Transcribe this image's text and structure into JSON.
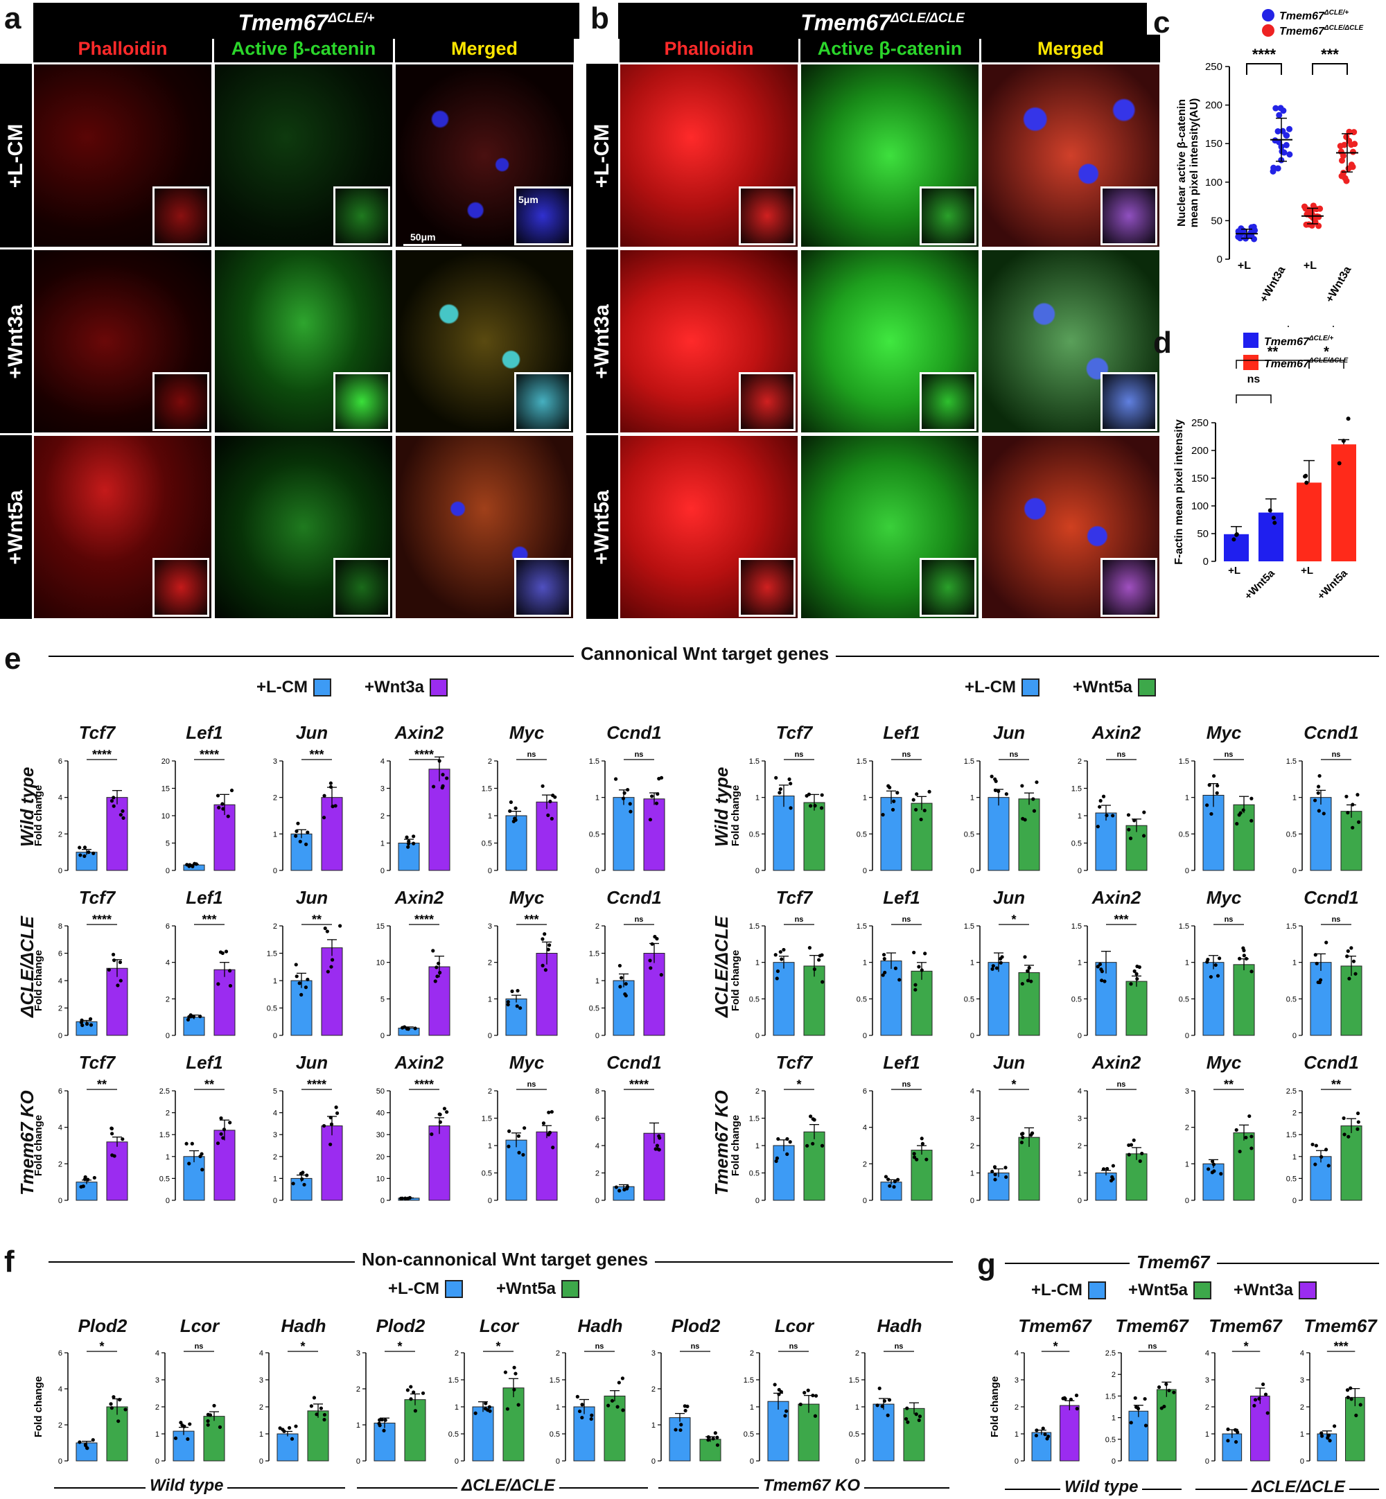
{
  "panel_labels": {
    "a": "a",
    "b": "b",
    "c": "c",
    "d": "d",
    "e": "e",
    "f": "f",
    "g": "g"
  },
  "micro_a": {
    "title_base": "Tmem67",
    "title_sup": "ΔCLE/+"
  },
  "micro_b": {
    "title_base": "Tmem67",
    "title_sup": "ΔCLE/ΔCLE"
  },
  "micro_columns": [
    "Phalloidin",
    "Active β-catenin",
    "Merged"
  ],
  "micro_column_colors": [
    "#ff2a2a",
    "#2bd62b",
    "#ffe600"
  ],
  "micro_rows": [
    "+L-CM",
    "+Wnt3a",
    "+Wnt5a"
  ],
  "scale_bars": {
    "inset": "5μm",
    "main": "50μm"
  },
  "chart_data": [
    {
      "id": "c",
      "type": "scatter",
      "legend": [
        {
          "name": "Tmem67",
          "sup": "ΔCLE/+",
          "color": "#2323e6"
        },
        {
          "name": "Tmem67",
          "sup": "ΔCLE/ΔCLE",
          "color": "#ee2222"
        }
      ],
      "ylabel": "Nuclear active β-catenin mean pixel intensity(AU)",
      "ylim": [
        0,
        250
      ],
      "yticks": [
        0,
        50,
        100,
        150,
        200,
        250
      ],
      "categories": [
        "+L",
        "+Wnt3a",
        "+L",
        "+Wnt3a"
      ],
      "means": [
        33,
        155,
        56,
        138
      ],
      "sig": [
        "****",
        "***"
      ]
    },
    {
      "id": "d",
      "type": "bar",
      "legend": [
        {
          "name": "Tmem67",
          "sup": "ΔCLE/+",
          "color": "#1f1fef"
        },
        {
          "name": "Tmem67",
          "sup": "ΔCLE/ΔCLE",
          "color": "#ff2a1a"
        }
      ],
      "ylabel": "F-actin mean pixel intensity",
      "ylim": [
        0,
        250
      ],
      "yticks": [
        0,
        50,
        100,
        150,
        200,
        250
      ],
      "categories": [
        "+L",
        "+Wnt5a",
        "+L",
        "+Wnt5a"
      ],
      "values": [
        49,
        88,
        142,
        211
      ],
      "sig": [
        "ns",
        "**",
        "*",
        "***"
      ]
    }
  ],
  "panel_e": {
    "title": "Cannonical Wnt target genes",
    "legend_left": [
      "+L-CM",
      "+Wnt3a"
    ],
    "legend_right": [
      "+L-CM",
      "+Wnt5a"
    ],
    "colors": {
      "lcm": "#3d9bf5",
      "wnt3a": "#9b2cf0",
      "wnt5a": "#3da84a"
    },
    "genes": [
      "Tcf7",
      "Lef1",
      "Jun",
      "Axin2",
      "Myc",
      "Ccnd1"
    ],
    "row_names": [
      "Wild type",
      "ΔCLE/ΔCLE",
      "Tmem67 KO"
    ],
    "ylabel": "Fold change",
    "left": [
      [
        {
          "y": [
            0,
            2,
            4,
            6
          ],
          "v": [
            1.0,
            4.0
          ],
          "s": "****"
        },
        {
          "y": [
            0,
            5,
            10,
            15,
            20
          ],
          "v": [
            1.0,
            12.0
          ],
          "s": "****"
        },
        {
          "y": [
            0,
            1,
            2,
            3
          ],
          "v": [
            1.0,
            2.0
          ],
          "s": "***"
        },
        {
          "y": [
            0,
            1,
            2,
            3,
            4
          ],
          "v": [
            1.0,
            3.7
          ],
          "s": "****"
        },
        {
          "y": [
            0.0,
            0.5,
            1.0,
            1.5,
            2.0
          ],
          "v": [
            1.0,
            1.25
          ],
          "s": "ns"
        },
        {
          "y": [
            0.0,
            0.5,
            1.0,
            1.5
          ],
          "v": [
            1.0,
            0.98
          ],
          "s": "ns"
        }
      ],
      [
        {
          "y": [
            0,
            2,
            4,
            6,
            8
          ],
          "v": [
            1.0,
            4.9
          ],
          "s": "****"
        },
        {
          "y": [
            0,
            2,
            4,
            6
          ],
          "v": [
            1.0,
            3.6
          ],
          "s": "***"
        },
        {
          "y": [
            0.0,
            0.5,
            1.0,
            1.5,
            2.0
          ],
          "v": [
            1.0,
            1.6
          ],
          "s": "**"
        },
        {
          "y": [
            0,
            5,
            10,
            15
          ],
          "v": [
            1.0,
            9.4
          ],
          "s": "****"
        },
        {
          "y": [
            0,
            1,
            2,
            3
          ],
          "v": [
            1.0,
            2.25
          ],
          "s": "***"
        },
        {
          "y": [
            0.0,
            0.5,
            1.0,
            1.5,
            2.0
          ],
          "v": [
            1.0,
            1.5
          ],
          "s": "ns"
        }
      ],
      [
        {
          "y": [
            0,
            2,
            4,
            6
          ],
          "v": [
            1.0,
            3.2
          ],
          "s": "**"
        },
        {
          "y": [
            0.0,
            0.5,
            1.0,
            1.5,
            2.0,
            2.5
          ],
          "v": [
            1.0,
            1.6
          ],
          "s": "**"
        },
        {
          "y": [
            0,
            1,
            2,
            3,
            4,
            5
          ],
          "v": [
            1.0,
            3.4
          ],
          "s": "****"
        },
        {
          "y": [
            0,
            10,
            20,
            30,
            40,
            50
          ],
          "v": [
            1.0,
            34
          ],
          "s": "****"
        },
        {
          "y": [
            0.0,
            0.5,
            1.0,
            1.5,
            2.0
          ],
          "v": [
            1.1,
            1.25
          ],
          "s": "ns"
        },
        {
          "y": [
            0,
            2,
            4,
            6,
            8
          ],
          "v": [
            1.0,
            4.9
          ],
          "s": "****"
        }
      ]
    ],
    "right": [
      [
        {
          "y": [
            0.0,
            0.5,
            1.0,
            1.5
          ],
          "v": [
            1.02,
            0.93
          ],
          "s": "ns"
        },
        {
          "y": [
            0.0,
            0.5,
            1.0,
            1.5
          ],
          "v": [
            1.0,
            0.92
          ],
          "s": "ns"
        },
        {
          "y": [
            0.0,
            0.5,
            1.0,
            1.5
          ],
          "v": [
            1.0,
            0.98
          ],
          "s": "ns"
        },
        {
          "y": [
            0.0,
            0.5,
            1.0,
            1.5,
            2.0
          ],
          "v": [
            1.05,
            0.82
          ],
          "s": "ns"
        },
        {
          "y": [
            0.0,
            0.5,
            1.0,
            1.5
          ],
          "v": [
            1.03,
            0.9
          ],
          "s": "ns"
        },
        {
          "y": [
            0.0,
            0.5,
            1.0,
            1.5
          ],
          "v": [
            1.0,
            0.81
          ],
          "s": "ns"
        }
      ],
      [
        {
          "y": [
            0.0,
            0.5,
            1.0,
            1.5
          ],
          "v": [
            1.0,
            0.95
          ],
          "s": "ns"
        },
        {
          "y": [
            0.0,
            0.5,
            1.0,
            1.5
          ],
          "v": [
            1.02,
            0.88
          ],
          "s": "ns"
        },
        {
          "y": [
            0.0,
            0.5,
            1.0,
            1.5
          ],
          "v": [
            1.0,
            0.86
          ],
          "s": "*"
        },
        {
          "y": [
            0.0,
            0.5,
            1.0,
            1.5
          ],
          "v": [
            1.0,
            0.74
          ],
          "s": "***"
        },
        {
          "y": [
            0.0,
            0.5,
            1.0,
            1.5
          ],
          "v": [
            1.0,
            0.97
          ],
          "s": "ns"
        },
        {
          "y": [
            0.0,
            0.5,
            1.0,
            1.5
          ],
          "v": [
            1.0,
            0.95
          ],
          "s": "ns"
        }
      ],
      [
        {
          "y": [
            0.0,
            0.5,
            1.0,
            1.5,
            2.0
          ],
          "v": [
            1.0,
            1.25
          ],
          "s": "*"
        },
        {
          "y": [
            0,
            2,
            4,
            6
          ],
          "v": [
            1.0,
            2.75
          ],
          "s": "ns"
        },
        {
          "y": [
            0,
            1,
            2,
            3,
            4
          ],
          "v": [
            1.0,
            2.3
          ],
          "s": "*"
        },
        {
          "y": [
            0,
            1,
            2,
            3,
            4
          ],
          "v": [
            1.0,
            1.7
          ],
          "s": "ns"
        },
        {
          "y": [
            0,
            1,
            2,
            3
          ],
          "v": [
            1.0,
            1.85
          ],
          "s": "**"
        },
        {
          "y": [
            0.0,
            0.5,
            1.0,
            1.5,
            2.0,
            2.5
          ],
          "v": [
            1.0,
            1.7
          ],
          "s": "**"
        }
      ]
    ]
  },
  "panel_f": {
    "title": "Non-cannonical Wnt target genes",
    "legend": [
      "+L-CM",
      "+Wnt5a"
    ],
    "genes": [
      "Plod2",
      "Lcor",
      "Hadh",
      "Plod2",
      "Lcor",
      "Hadh",
      "Plod2",
      "Lcor",
      "Hadh"
    ],
    "groups": [
      "Wild type",
      "ΔCLE/ΔCLE",
      "Tmem67 KO"
    ],
    "ylabel": "Fold change",
    "charts": [
      {
        "y": [
          0,
          2,
          4,
          6
        ],
        "v": [
          1.0,
          3.0
        ],
        "s": "*"
      },
      {
        "y": [
          0,
          1,
          2,
          3,
          4
        ],
        "v": [
          1.1,
          1.65
        ],
        "s": "ns"
      },
      {
        "y": [
          0,
          1,
          2,
          3,
          4
        ],
        "v": [
          1.0,
          1.85
        ],
        "s": "*"
      },
      {
        "y": [
          0,
          1,
          2,
          3
        ],
        "v": [
          1.05,
          1.7
        ],
        "s": "*"
      },
      {
        "y": [
          0.0,
          0.5,
          1.0,
          1.5,
          2.0
        ],
        "v": [
          1.0,
          1.35
        ],
        "s": "*"
      },
      {
        "y": [
          0.0,
          0.5,
          1.0,
          1.5,
          2.0
        ],
        "v": [
          1.0,
          1.2
        ],
        "s": "ns"
      },
      {
        "y": [
          0,
          1,
          2,
          3
        ],
        "v": [
          1.2,
          0.6
        ],
        "s": "ns"
      },
      {
        "y": [
          0.0,
          0.5,
          1.0,
          1.5,
          2.0
        ],
        "v": [
          1.1,
          1.05
        ],
        "s": "ns"
      },
      {
        "y": [
          0.0,
          0.5,
          1.0,
          1.5,
          2.0
        ],
        "v": [
          1.05,
          0.97
        ],
        "s": "ns"
      }
    ]
  },
  "panel_g": {
    "title": "Tmem67",
    "legend": [
      "+L-CM",
      "+Wnt5a",
      "+Wnt3a"
    ],
    "genes": [
      "Tmem67",
      "Tmem67",
      "Tmem67",
      "Tmem67"
    ],
    "groups": [
      "Wild type",
      "ΔCLE/ΔCLE"
    ],
    "ylabel": "Fold change",
    "charts": [
      {
        "y": [
          0,
          1,
          2,
          3,
          4
        ],
        "v": [
          1.05,
          2.05
        ],
        "s": "*",
        "c": "wnt3a"
      },
      {
        "y": [
          0.0,
          0.5,
          1.0,
          1.5,
          2.0,
          2.5
        ],
        "v": [
          1.15,
          1.65
        ],
        "s": "ns",
        "c": "wnt5a"
      },
      {
        "y": [
          0,
          1,
          2,
          3,
          4
        ],
        "v": [
          1.0,
          2.4
        ],
        "s": "*",
        "c": "wnt3a"
      },
      {
        "y": [
          0,
          1,
          2,
          3,
          4
        ],
        "v": [
          1.0,
          2.35
        ],
        "s": "***",
        "c": "wnt5a"
      }
    ]
  }
}
